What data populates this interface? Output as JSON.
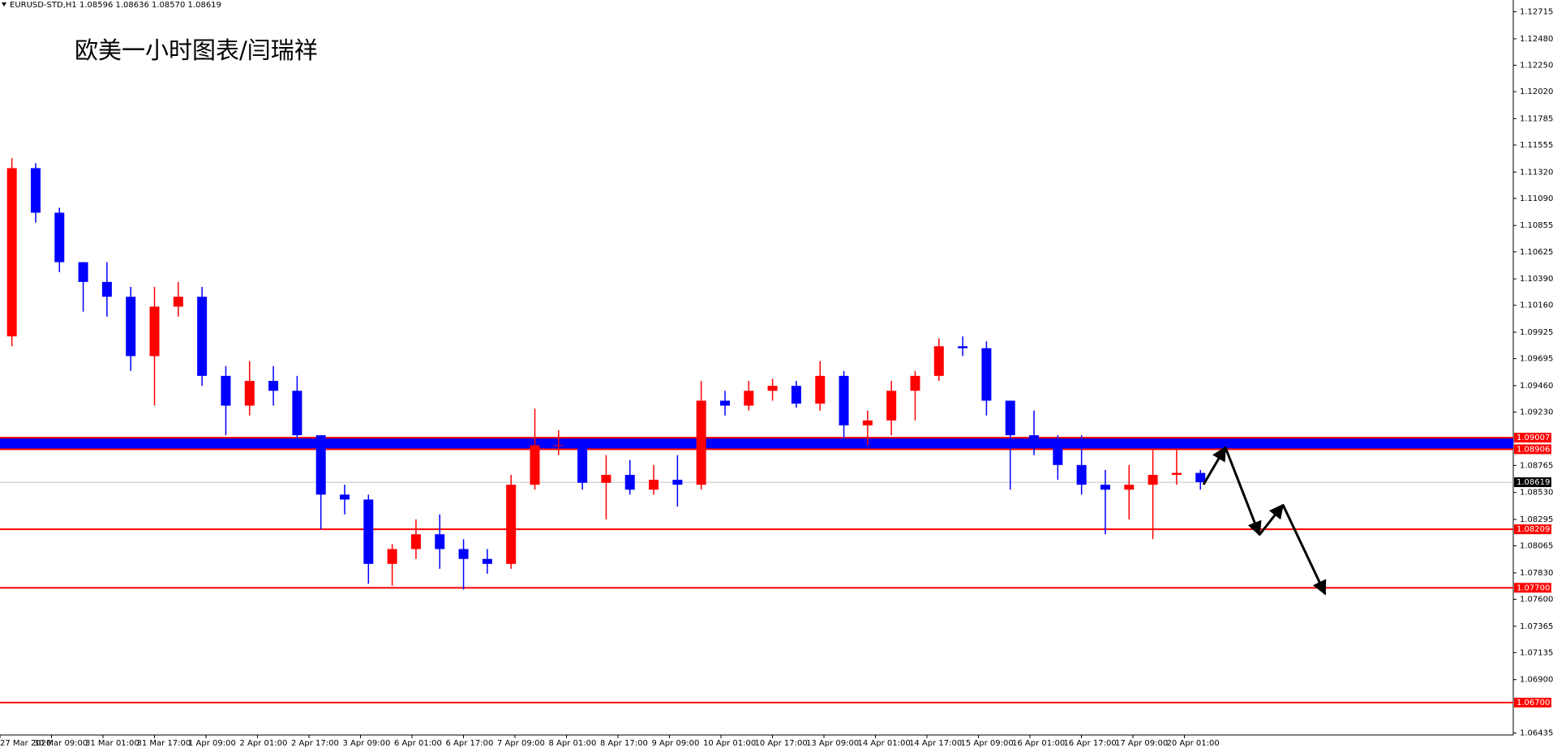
{
  "chart_data": {
    "type": "candlestick",
    "header": "EURUSD-STD,H1  1.08596 1.08636 1.08570 1.08619",
    "title": "欧美一小时图表/闫瑞祥",
    "colors": {
      "up": "#ff0000",
      "down": "#0000ff"
    },
    "open": [
      1.09889,
      1.11354,
      1.10966,
      1.10535,
      1.10363,
      1.10234,
      1.09717,
      1.10148,
      1.10234,
      1.09545,
      1.09286,
      1.09501,
      1.09415,
      1.09028,
      1.08511,
      1.08468,
      1.07908,
      1.08037,
      1.08166,
      1.08037,
      1.07951,
      1.07908,
      1.08597,
      1.08941,
      1.08941,
      1.08614,
      1.08683,
      1.08554,
      1.0864,
      1.08597,
      1.09329,
      1.09286,
      1.09415,
      1.09458,
      1.09303,
      1.09545,
      1.09114,
      1.09157,
      1.09415,
      1.09545,
      1.09803,
      1.09786,
      1.09329,
      1.09028,
      1.08941,
      1.08769,
      1.08597,
      1.08554,
      1.08597,
      1.08683,
      1.087
    ],
    "high": [
      1.1144,
      1.11397,
      1.11009,
      1.10535,
      1.10535,
      1.1032,
      1.1032,
      1.10363,
      1.1032,
      1.09631,
      1.09674,
      1.09631,
      1.09545,
      1.09028,
      1.08597,
      1.08511,
      1.0808,
      1.08295,
      1.08339,
      1.08123,
      1.08037,
      1.08683,
      1.0926,
      1.09071,
      1.08985,
      1.08855,
      1.08812,
      1.08769,
      1.08855,
      1.09501,
      1.09415,
      1.09501,
      1.09519,
      1.09501,
      1.09674,
      1.09588,
      1.09243,
      1.09501,
      1.09588,
      1.09872,
      1.09889,
      1.09846,
      1.09329,
      1.09243,
      1.09028,
      1.09028,
      1.08726,
      1.08769,
      1.08898,
      1.08898,
      1.08726
    ],
    "low": [
      1.09803,
      1.1088,
      1.10449,
      1.10104,
      1.10061,
      1.09588,
      1.09286,
      1.10061,
      1.09458,
      1.09028,
      1.092,
      1.09286,
      1.08941,
      1.08209,
      1.08339,
      1.07735,
      1.07718,
      1.07951,
      1.07865,
      1.07684,
      1.07822,
      1.07865,
      1.08554,
      1.08855,
      1.08554,
      1.08295,
      1.08511,
      1.08511,
      1.08407,
      1.08554,
      1.092,
      1.09243,
      1.09329,
      1.09269,
      1.09243,
      1.08941,
      1.08941,
      1.09028,
      1.09157,
      1.09501,
      1.09717,
      1.092,
      1.08554,
      1.08855,
      1.0864,
      1.08511,
      1.08166,
      1.08295,
      1.08123,
      1.08597,
      1.08554
    ],
    "close": [
      1.11354,
      1.10966,
      1.10535,
      1.10363,
      1.10234,
      1.09717,
      1.10148,
      1.10234,
      1.09545,
      1.09286,
      1.09501,
      1.09415,
      1.09028,
      1.08511,
      1.08468,
      1.07908,
      1.08037,
      1.08166,
      1.08037,
      1.07951,
      1.07908,
      1.08597,
      1.08941,
      1.08941,
      1.08614,
      1.08683,
      1.08554,
      1.0864,
      1.08597,
      1.09329,
      1.09286,
      1.09415,
      1.09458,
      1.09303,
      1.09545,
      1.09114,
      1.09157,
      1.09415,
      1.09545,
      1.09803,
      1.09786,
      1.09329,
      1.09028,
      1.08941,
      1.08769,
      1.08597,
      1.08554,
      1.08597,
      1.08683,
      1.087,
      1.08619
    ],
    "x_tick_labels": [
      "27 Mar 2020",
      "30 Mar 09:00",
      "31 Mar 01:00",
      "31 Mar 17:00",
      "1 Apr 09:00",
      "2 Apr 01:00",
      "2 Apr 17:00",
      "3 Apr 09:00",
      "6 Apr 01:00",
      "6 Apr 17:00",
      "7 Apr 09:00",
      "8 Apr 01:00",
      "8 Apr 17:00",
      "9 Apr 09:00",
      "10 Apr 01:00",
      "10 Apr 17:00",
      "13 Apr 09:00",
      "14 Apr 01:00",
      "14 Apr 17:00",
      "15 Apr 09:00",
      "16 Apr 01:00",
      "16 Apr 17:00",
      "17 Apr 09:00",
      "20 Apr 01:00"
    ],
    "ylim": [
      1.06418,
      1.12818
    ],
    "yticks": [
      1.12715,
      {
        "value": 1.1248,
        "label": "1.12480"
      },
      {
        "value": 1.1225,
        "label": "1.12250"
      },
      {
        "value": 1.1202,
        "label": "1.12020"
      },
      1.11785,
      1.11555,
      {
        "value": 1.1132,
        "label": "1.11320"
      },
      {
        "value": 1.1109,
        "label": "1.11090"
      },
      1.10855,
      1.10625,
      {
        "value": 1.1039,
        "label": "1.10390"
      },
      {
        "value": 1.1016,
        "label": "1.10160"
      },
      1.09925,
      1.09695,
      {
        "value": 1.0946,
        "label": "1.09460"
      },
      {
        "value": 1.0923,
        "label": "1.09230"
      },
      1.08765,
      {
        "value": 1.0853,
        "label": "1.08530"
      },
      1.08295,
      1.08065,
      {
        "value": 1.0783,
        "label": "1.07830"
      },
      {
        "value": 1.076,
        "label": "1.07600"
      },
      1.07365,
      1.07135,
      {
        "value": 1.069,
        "label": "1.06900"
      },
      1.06435
    ],
    "zone": {
      "top": 1.09007,
      "bottom": 1.08906,
      "color": "#0000ff",
      "line_color": "#ff0000"
    },
    "levels": [
      1.08209,
      {
        "value": 1.077,
        "label": "1.07700"
      },
      {
        "value": 1.067,
        "label": "1.06700"
      }
    ],
    "level_color": "#ff0000",
    "last_price": 1.08619
  }
}
